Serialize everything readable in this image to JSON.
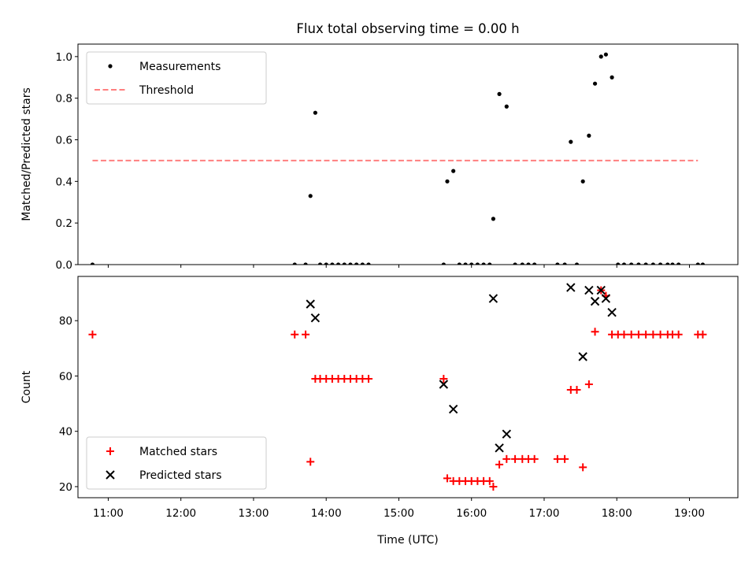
{
  "title": "Flux total observing time = 0.00 h",
  "colors": {
    "threshold": "#ff7f7f",
    "matched": "#ff0000",
    "predicted": "#000000",
    "measurement": "#000000"
  },
  "chart_data": [
    {
      "type": "scatter",
      "ylabel": "Matched/Predicted stars",
      "ylim": [
        0,
        1.06
      ],
      "yticks": [
        "0.0",
        "0.2",
        "0.4",
        "0.6",
        "0.8",
        "1.0"
      ],
      "xlim": [
        "10:35",
        "19:40"
      ],
      "xtick_labels_shown": false,
      "legend_position": "upper-left",
      "series": [
        {
          "name": "Measurements",
          "marker": "dot",
          "x": [
            "10:47",
            "13:34",
            "13:43",
            "13:47",
            "13:51",
            "13:55",
            "14:00",
            "14:05",
            "14:10",
            "14:15",
            "14:20",
            "14:25",
            "14:30",
            "14:35",
            "15:37",
            "15:40",
            "15:45",
            "15:50",
            "15:55",
            "16:00",
            "16:05",
            "16:10",
            "16:15",
            "16:18",
            "16:23",
            "16:29",
            "16:36",
            "16:42",
            "16:47",
            "16:52",
            "17:11",
            "17:17",
            "17:22",
            "17:27",
            "17:32",
            "17:37",
            "17:42",
            "17:47",
            "17:51",
            "17:56",
            "18:01",
            "18:06",
            "18:12",
            "18:18",
            "18:24",
            "18:30",
            "18:36",
            "18:42",
            "18:46",
            "18:51",
            "19:07",
            "19:11"
          ],
          "y": [
            0,
            0,
            0,
            0.33,
            0.73,
            0,
            0,
            0,
            0,
            0,
            0,
            0,
            0,
            0,
            0,
            0.4,
            0.45,
            0,
            0,
            0,
            0,
            0,
            0,
            0.22,
            0.82,
            0.76,
            0,
            0,
            0,
            0,
            0,
            0,
            0.59,
            0,
            0.4,
            0.62,
            0.87,
            1.0,
            1.01,
            0.9,
            0,
            0,
            0,
            0,
            0,
            0,
            0,
            0,
            0,
            0,
            0,
            0
          ]
        },
        {
          "name": "Threshold",
          "style": "dashed",
          "x": [
            "10:47",
            "19:07"
          ],
          "y": [
            0.5,
            0.5
          ]
        }
      ]
    },
    {
      "type": "scatter",
      "ylabel": "Count",
      "xlabel": "Time (UTC)",
      "ylim": [
        16,
        96
      ],
      "yticks": [
        "20",
        "40",
        "60",
        "80"
      ],
      "xlim": [
        "10:35",
        "19:40"
      ],
      "xticks": [
        "11:00",
        "12:00",
        "13:00",
        "14:00",
        "15:00",
        "16:00",
        "17:00",
        "18:00",
        "19:00"
      ],
      "legend_position": "lower-left",
      "series": [
        {
          "name": "Matched stars",
          "marker": "plus",
          "x": [
            "10:47",
            "13:34",
            "13:43",
            "13:47",
            "13:51",
            "13:55",
            "14:00",
            "14:05",
            "14:10",
            "14:15",
            "14:20",
            "14:25",
            "14:30",
            "14:35",
            "15:37",
            "15:40",
            "15:45",
            "15:50",
            "15:55",
            "16:00",
            "16:05",
            "16:10",
            "16:15",
            "16:18",
            "16:23",
            "16:29",
            "16:36",
            "16:42",
            "16:47",
            "16:52",
            "17:11",
            "17:17",
            "17:22",
            "17:27",
            "17:32",
            "17:37",
            "17:42",
            "17:47",
            "17:51",
            "17:56",
            "18:01",
            "18:06",
            "18:12",
            "18:18",
            "18:24",
            "18:30",
            "18:36",
            "18:42",
            "18:46",
            "18:51",
            "19:07",
            "19:11"
          ],
          "y": [
            75,
            75,
            75,
            29,
            59,
            59,
            59,
            59,
            59,
            59,
            59,
            59,
            59,
            59,
            59,
            23,
            22,
            22,
            22,
            22,
            22,
            22,
            22,
            20,
            28,
            30,
            30,
            30,
            30,
            30,
            30,
            30,
            55,
            55,
            27,
            57,
            76,
            91,
            89,
            75,
            75,
            75,
            75,
            75,
            75,
            75,
            75,
            75,
            75,
            75,
            75,
            75
          ]
        },
        {
          "name": "Predicted stars",
          "marker": "x",
          "x": [
            "13:47",
            "13:51",
            "15:37",
            "15:45",
            "16:18",
            "16:23",
            "16:29",
            "17:22",
            "17:32",
            "17:37",
            "17:42",
            "17:47",
            "17:51",
            "17:56"
          ],
          "y": [
            86,
            81,
            57,
            48,
            88,
            34,
            39,
            92,
            67,
            91,
            87,
            91,
            88,
            83
          ]
        }
      ]
    }
  ]
}
